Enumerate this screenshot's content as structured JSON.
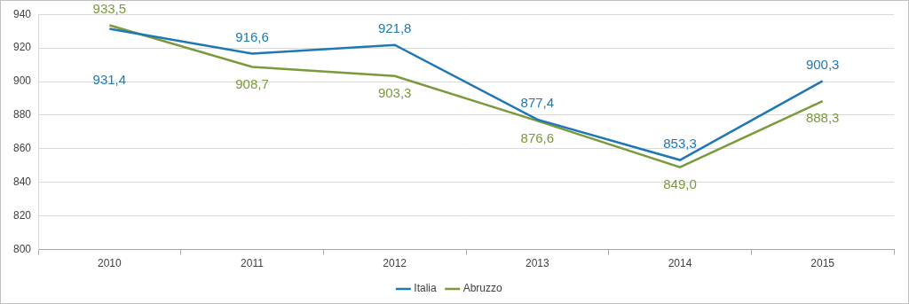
{
  "chart_data": {
    "type": "line",
    "categories": [
      "2010",
      "2011",
      "2012",
      "2013",
      "2014",
      "2015"
    ],
    "series": [
      {
        "name": "Italia",
        "color": "#1f78b4",
        "values": [
          931.4,
          916.6,
          921.8,
          877.4,
          853.3,
          900.3
        ],
        "value_labels": [
          "931,4",
          "916,6",
          "921,8",
          "877,4",
          "853,3",
          "900,3"
        ]
      },
      {
        "name": "Abruzzo",
        "color": "#7a9a3c",
        "values": [
          933.5,
          908.7,
          903.3,
          876.6,
          849.0,
          888.3
        ],
        "value_labels": [
          "933,5",
          "908,7",
          "903,3",
          "876,6",
          "849,0",
          "888,3"
        ]
      }
    ],
    "ylim": [
      800,
      940
    ],
    "yticks": [
      800,
      820,
      840,
      860,
      880,
      900,
      920,
      940
    ],
    "grid": true,
    "legend": "bottom",
    "data_labels": true
  }
}
